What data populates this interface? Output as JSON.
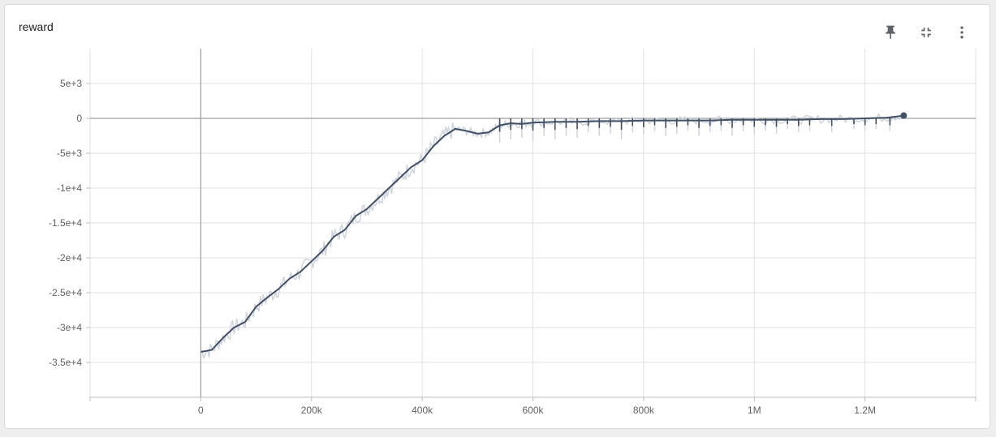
{
  "card": {
    "title": "reward",
    "toolbar": [
      {
        "label": "Pin",
        "icon": "pin-icon"
      },
      {
        "label": "Collapse",
        "icon": "collapse-icon"
      },
      {
        "label": "More options",
        "icon": "more-vert-icon"
      }
    ]
  },
  "chart_data": {
    "type": "line",
    "title": "reward",
    "xlabel": "",
    "ylabel": "",
    "xlim": [
      -200000,
      1400000
    ],
    "ylim": [
      -40000,
      10000
    ],
    "x_ticks": [
      0,
      200000,
      400000,
      600000,
      800000,
      1000000,
      1200000
    ],
    "x_tick_labels": [
      "0",
      "200k",
      "400k",
      "600k",
      "800k",
      "1M",
      "1.2M"
    ],
    "y_ticks": [
      5000,
      0,
      -5000,
      -10000,
      -15000,
      -20000,
      -25000,
      -30000,
      -35000
    ],
    "y_tick_labels": [
      "5e+3",
      "0",
      "-5e+3",
      "-1e+4",
      "-1.5e+4",
      "-2e+4",
      "-2.5e+4",
      "-3e+4",
      "-3.5e+4"
    ],
    "grid": true,
    "colors": {
      "smoothed": "#425066",
      "raw": "#cfd4dd",
      "axis": "#9e9e9e",
      "grid": "#e0e0e0"
    },
    "series": [
      {
        "x": [
          0,
          20000,
          40000,
          60000,
          80000,
          100000,
          120000,
          140000,
          160000,
          180000,
          200000,
          220000,
          240000,
          260000,
          280000,
          300000,
          320000,
          340000,
          360000,
          380000,
          400000,
          420000,
          440000,
          460000,
          480000,
          500000,
          520000,
          540000,
          560000,
          580000,
          600000,
          640000,
          680000,
          720000,
          760000,
          800000,
          840000,
          880000,
          920000,
          960000,
          1000000,
          1040000,
          1080000,
          1120000,
          1160000,
          1200000,
          1240000,
          1270000
        ],
        "y": [
          -33500,
          -33200,
          -31500,
          -30000,
          -29200,
          -27000,
          -25700,
          -24500,
          -23000,
          -22000,
          -20500,
          -19000,
          -17000,
          -16000,
          -14000,
          -13000,
          -11500,
          -10000,
          -8500,
          -7000,
          -6000,
          -4000,
          -2500,
          -1500,
          -1800,
          -2200,
          -2000,
          -1000,
          -700,
          -800,
          -600,
          -500,
          -500,
          -400,
          -400,
          -300,
          -300,
          -300,
          -300,
          -200,
          -200,
          -200,
          -200,
          -100,
          -100,
          0,
          100,
          400
        ],
        "spikes_x": [
          540000,
          560000,
          580000,
          600000,
          620000,
          640000,
          660000,
          680000,
          700000,
          720000,
          740000,
          760000,
          780000,
          800000,
          820000,
          840000,
          860000,
          880000,
          900000,
          920000,
          940000,
          960000,
          980000,
          1000000,
          1020000,
          1040000,
          1060000,
          1080000,
          1100000,
          1140000,
          1180000,
          1200000,
          1220000,
          1245000
        ],
        "spikes_y": [
          -3500,
          -3000,
          -2800,
          -3200,
          -2500,
          -3000,
          -2500,
          -2800,
          -2000,
          -2500,
          -2200,
          -3000,
          -2000,
          -2300,
          -1800,
          -2500,
          -2200,
          -1800,
          -2500,
          -2000,
          -1800,
          -2500,
          -1800,
          -2200,
          -1800,
          -2200,
          -1500,
          -2000,
          -1800,
          -2000,
          -1500,
          -1800,
          -1500,
          -1800
        ],
        "last_point": [
          1270000,
          400
        ]
      }
    ]
  }
}
